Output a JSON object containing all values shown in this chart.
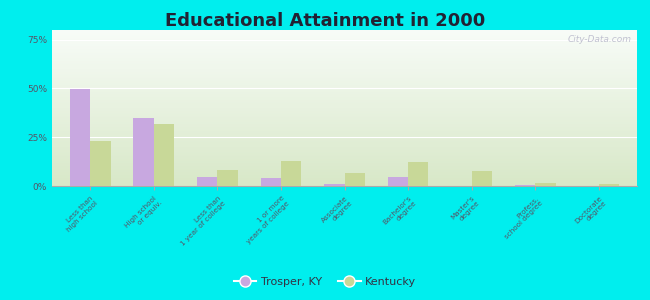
{
  "title": "Educational Attainment in 2000",
  "categories": [
    "Less than\nhigh school",
    "High school\nor equiv.",
    "Less than\n1 year of college",
    "1 or more\nyears of college",
    "Associate\ndegree",
    "Bachelor's\ndegree",
    "Master's\ndegree",
    "Profess.\nschool degree",
    "Doctorate\ndegree"
  ],
  "trosper_values": [
    49.5,
    35.0,
    4.5,
    4.0,
    1.0,
    4.5,
    0.0,
    0.5,
    0.0
  ],
  "kentucky_values": [
    23.0,
    32.0,
    8.0,
    13.0,
    6.5,
    12.5,
    7.5,
    1.5,
    1.0
  ],
  "trosper_color": "#c8a8e0",
  "kentucky_color": "#c8d898",
  "background_color": "#00eeee",
  "grad_top": "#f0f8f0",
  "grad_bottom": "#d8e8c8",
  "yticks": [
    0,
    25,
    50,
    75
  ],
  "ylim": [
    0,
    80
  ],
  "bar_width": 0.32,
  "title_fontsize": 13,
  "watermark": "City-Data.com"
}
